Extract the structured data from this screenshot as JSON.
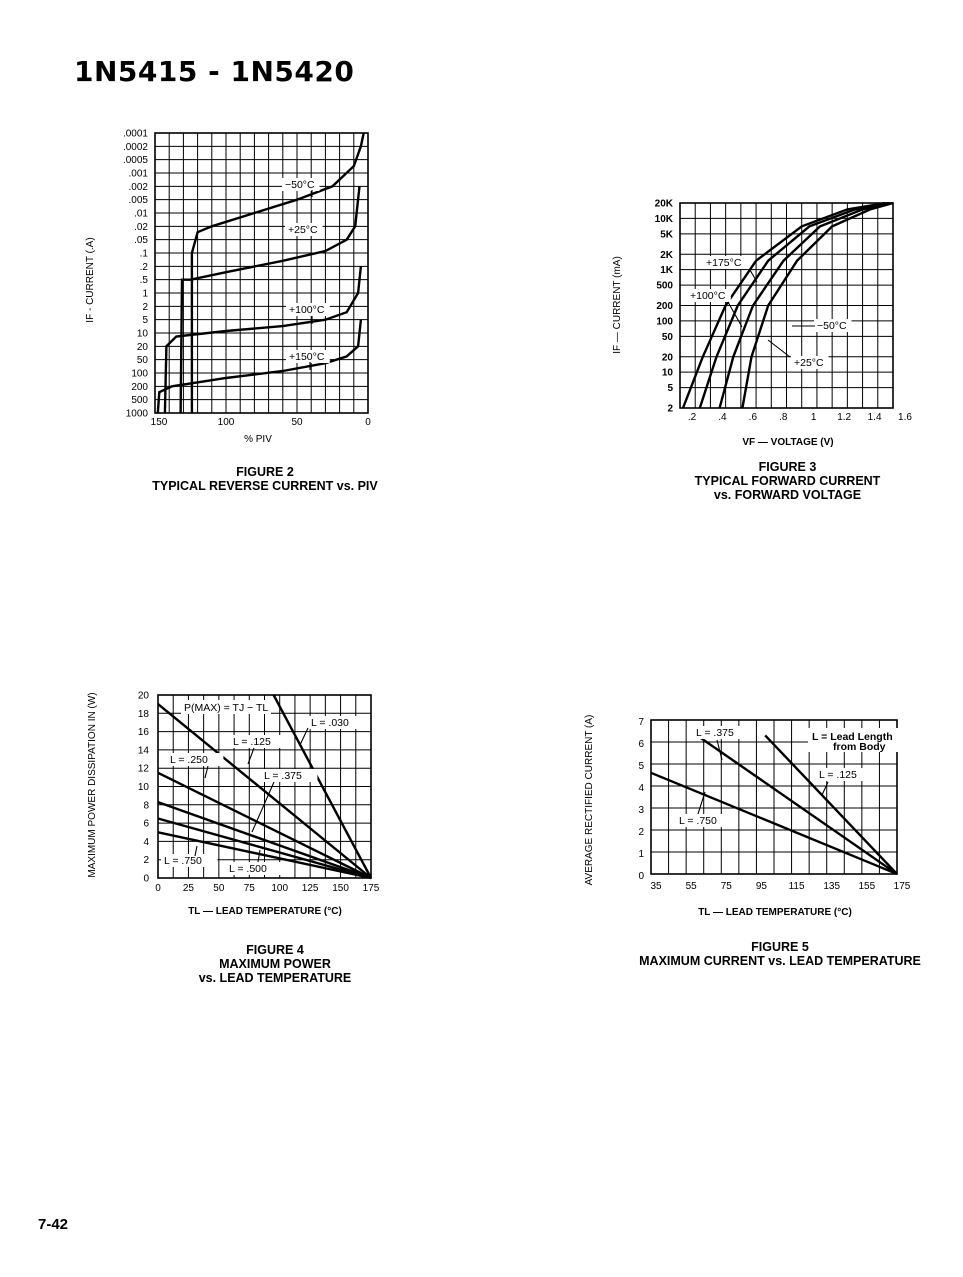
{
  "page": {
    "title": "1N5415 - 1N5420",
    "page_number": "7-42"
  },
  "figures": {
    "fig2": {
      "caption_number": "FIGURE 2",
      "caption_title": [
        "TYPICAL REVERSE CURRENT vs. PIV"
      ]
    },
    "fig3": {
      "caption_number": "FIGURE 3",
      "caption_title": [
        "TYPICAL FORWARD CURRENT",
        "vs. FORWARD VOLTAGE"
      ]
    },
    "fig4": {
      "caption_number": "FIGURE 4",
      "caption_title": [
        "MAXIMUM POWER",
        "vs. LEAD TEMPERATURE"
      ]
    },
    "fig5": {
      "caption_number": "FIGURE 5",
      "caption_title": [
        "MAXIMUM CURRENT vs. LEAD TEMPERATURE"
      ]
    }
  },
  "chart_data": [
    {
      "id": "fig2",
      "type": "line",
      "xlabel": "% PIV",
      "ylabel": "IF - CURRENT (.A)",
      "x_ticks": [
        "150",
        "100",
        "50",
        "0"
      ],
      "y_ticks": [
        ".0001",
        ".0002",
        ".0005",
        ".001",
        ".002",
        ".005",
        ".01",
        ".02",
        ".05",
        ".1",
        ".2",
        ".5",
        "1",
        "2",
        "5",
        "10",
        "20",
        "50",
        "100",
        "200",
        "500",
        "1000"
      ],
      "xlim": [
        150,
        0
      ],
      "ylim": [
        ".0001",
        "1000"
      ],
      "y_reversed": true,
      "grid": true,
      "series": [
        {
          "name": "-50°C",
          "label": "−50°C",
          "points": [
            [
              124,
              1000
            ],
            [
              124,
              0.1
            ],
            [
              120,
              0.03
            ],
            [
              110,
              0.02
            ],
            [
              80,
              0.01
            ],
            [
              50,
              0.005
            ],
            [
              25,
              0.002
            ],
            [
              10,
              0.0007
            ],
            [
              5,
              0.0002
            ],
            [
              3,
              0.0001
            ]
          ]
        },
        {
          "name": "+25°C",
          "label": "+25°C",
          "points": [
            [
              132,
              1000
            ],
            [
              131,
              0.5
            ],
            [
              125,
              0.5
            ],
            [
              100,
              0.3
            ],
            [
              60,
              0.15
            ],
            [
              30,
              0.09
            ],
            [
              15,
              0.05
            ],
            [
              9,
              0.02
            ],
            [
              6,
              0.002
            ]
          ]
        },
        {
          "name": "+100°C",
          "label": "+100°C",
          "points": [
            [
              143,
              1000
            ],
            [
              142,
              20
            ],
            [
              135,
              12
            ],
            [
              100,
              9
            ],
            [
              60,
              7
            ],
            [
              30,
              5
            ],
            [
              15,
              3
            ],
            [
              7,
              1
            ],
            [
              5,
              0.2
            ]
          ]
        },
        {
          "name": "+150°C",
          "label": "+150°C",
          "points": [
            [
              148,
              1000
            ],
            [
              147,
              300
            ],
            [
              138,
              200
            ],
            [
              100,
              130
            ],
            [
              60,
              90
            ],
            [
              30,
              60
            ],
            [
              15,
              40
            ],
            [
              7,
              20
            ],
            [
              5,
              5
            ]
          ]
        }
      ]
    },
    {
      "id": "fig3",
      "type": "line",
      "xlabel": "VF — VOLTAGE (V)",
      "ylabel": "IF — CURRENT (mA)",
      "x_ticks": [
        ".2",
        ".4",
        ".6",
        ".8",
        "1",
        "1.2",
        "1.4",
        "1.6"
      ],
      "y_ticks": [
        "20K",
        "10K",
        "5K",
        "2K",
        "1K",
        "500",
        "200",
        "100",
        "50",
        "20",
        "10",
        "5",
        "2"
      ],
      "xlim": [
        0.2,
        1.6
      ],
      "ylim": [
        2,
        20000
      ],
      "y_scale": "log",
      "grid": true,
      "series": [
        {
          "name": "+175°C",
          "label": "+175°C",
          "points": [
            [
              0.22,
              2
            ],
            [
              0.35,
              20
            ],
            [
              0.5,
              200
            ],
            [
              0.7,
              1500
            ],
            [
              1.0,
              7000
            ],
            [
              1.3,
              15000
            ],
            [
              1.55,
              20000
            ]
          ]
        },
        {
          "name": "+100°C",
          "label": "+100°C",
          "points": [
            [
              0.33,
              2
            ],
            [
              0.44,
              20
            ],
            [
              0.58,
              200
            ],
            [
              0.78,
              1500
            ],
            [
              1.05,
              7000
            ],
            [
              1.35,
              15000
            ],
            [
              1.57,
              20000
            ]
          ]
        },
        {
          "name": "+25°C",
          "label": "+25°C",
          "points": [
            [
              0.46,
              2
            ],
            [
              0.55,
              20
            ],
            [
              0.68,
              200
            ],
            [
              0.88,
              1500
            ],
            [
              1.12,
              7000
            ],
            [
              1.4,
              15000
            ],
            [
              1.58,
              20000
            ]
          ]
        },
        {
          "name": "-50°C",
          "label": "−50°C",
          "points": [
            [
              0.61,
              2
            ],
            [
              0.67,
              20
            ],
            [
              0.78,
              200
            ],
            [
              0.97,
              1500
            ],
            [
              1.2,
              7000
            ],
            [
              1.45,
              15000
            ],
            [
              1.6,
              20000
            ]
          ]
        }
      ]
    },
    {
      "id": "fig4",
      "type": "line",
      "xlabel": "TL — LEAD TEMPERATURE (°C)",
      "ylabel": "MAXIMUM POWER DISSIPATION IN (W)",
      "annotation": "P(MAX) = TJ − TL",
      "x_ticks": [
        "0",
        "25",
        "50",
        "75",
        "100",
        "125",
        "150",
        "175"
      ],
      "y_ticks": [
        "20",
        "18",
        "16",
        "14",
        "12",
        "10",
        "8",
        "6",
        "4",
        "2",
        "0"
      ],
      "xlim": [
        0,
        175
      ],
      "ylim": [
        0,
        20
      ],
      "grid": true,
      "series": [
        {
          "name": "L = .030",
          "label": "L = .030",
          "points": [
            [
              95,
              20
            ],
            [
              175,
              0
            ]
          ]
        },
        {
          "name": "L = .125",
          "label": "L = .125",
          "points": [
            [
              0,
              19
            ],
            [
              175,
              0
            ]
          ]
        },
        {
          "name": "L = .250",
          "label": "L = .250",
          "points": [
            [
              0,
              11.5
            ],
            [
              175,
              0
            ]
          ]
        },
        {
          "name": "L = .375",
          "label": "L = .375",
          "points": [
            [
              0,
              8.3
            ],
            [
              175,
              0
            ]
          ]
        },
        {
          "name": "L = .500",
          "label": "L = .500",
          "points": [
            [
              0,
              6.5
            ],
            [
              175,
              0
            ]
          ]
        },
        {
          "name": "L = .750",
          "label": "L = .750",
          "points": [
            [
              0,
              5
            ],
            [
              175,
              0
            ]
          ]
        }
      ]
    },
    {
      "id": "fig5",
      "type": "line",
      "xlabel": "TL — LEAD TEMPERATURE (°C)",
      "ylabel": "AVERAGE RECTIFIED CURRENT (A)",
      "x_ticks": [
        "35",
        "55",
        "75",
        "95",
        "115",
        "135",
        "155",
        "175"
      ],
      "y_ticks": [
        "7",
        "6",
        "5",
        "4",
        "3",
        "2",
        "1",
        "0"
      ],
      "xlim": [
        35,
        175
      ],
      "ylim": [
        0,
        7
      ],
      "grid": true,
      "legend_note": [
        "L = Lead Length",
        "from Body"
      ],
      "series": [
        {
          "name": "L = .125",
          "label": "L = .125",
          "points": [
            [
              100,
              6.3
            ],
            [
              175,
              0
            ]
          ]
        },
        {
          "name": "L = .375",
          "label": "L = .375",
          "points": [
            [
              63,
              6.2
            ],
            [
              175,
              0
            ]
          ]
        },
        {
          "name": "L = .750",
          "label": "L = .750",
          "points": [
            [
              35,
              4.6
            ],
            [
              175,
              0
            ]
          ]
        }
      ]
    }
  ]
}
